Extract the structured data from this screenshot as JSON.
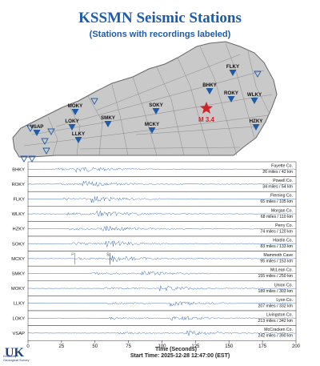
{
  "title": "KSSMN Seismic Stations",
  "subtitle": "(Stations with recordings labeled)",
  "event": {
    "label": "M 3.4"
  },
  "map_stations": [
    {
      "code": "FLKY"
    },
    {
      "code": "BHKY"
    },
    {
      "code": "ROKY"
    },
    {
      "code": "WLKY"
    },
    {
      "code": "MOKY"
    },
    {
      "code": "SOKY"
    },
    {
      "code": "SMKY"
    },
    {
      "code": "LOKY"
    },
    {
      "code": "MCKY"
    },
    {
      "code": "HZKY"
    },
    {
      "code": "VSAP"
    },
    {
      "code": "LLKY"
    }
  ],
  "rows": [
    {
      "code": "BHKY",
      "place": "Fayette Co.",
      "dist": "26 miles / 42 km",
      "p": 20
    },
    {
      "code": "ROKY",
      "place": "Powell Co.",
      "dist": "34 miles / 54 km",
      "p": 23
    },
    {
      "code": "FLKY",
      "place": "Fleming Co.",
      "dist": "65 miles / 105 km",
      "p": 27
    },
    {
      "code": "WLKY",
      "place": "Morgan Co.",
      "dist": "68 miles / 110 km",
      "p": 29
    },
    {
      "code": "HZKY",
      "place": "Perry Co.",
      "dist": "74 miles / 120 km",
      "p": 31
    },
    {
      "code": "SOKY",
      "place": "Hardin Co.",
      "dist": "83 miles / 133 km",
      "p": 33
    },
    {
      "code": "MCKY",
      "place": "Mammoth Cave",
      "dist": "95 miles / 153 km",
      "p": 35
    },
    {
      "code": "SMKY",
      "place": "McLean Co.",
      "dist": "155 miles / 250 km",
      "p": 48
    },
    {
      "code": "MOKY",
      "place": "Union Co.",
      "dist": "189 miles / 303 km",
      "p": 56
    },
    {
      "code": "LLKY",
      "place": "Lyon Co.",
      "dist": "207 miles / 332 km",
      "p": 60
    },
    {
      "code": "LOKY",
      "place": "Livingston Co.",
      "dist": "213 miles / 342 km",
      "p": 61
    },
    {
      "code": "VSAP",
      "place": "McCracken Co.",
      "dist": "242 miles / 390 km",
      "p": 67
    }
  ],
  "phase_labels": {
    "p": "P",
    "s": "S"
  },
  "axis": {
    "ticks": [
      "0",
      "25",
      "50",
      "75",
      "100",
      "125",
      "150",
      "175",
      "200"
    ],
    "xmin": 0,
    "xmax": 200,
    "xlabel": "Time (Seconds)",
    "start_time": "Start Time:  2025-12-28 12:47:00 (EST)"
  },
  "logo": {
    "line1": "Kentucky",
    "line2": "Geological Survey"
  },
  "colors": {
    "state_fill": "#c9c9c9",
    "county_line": "#7d7d7d",
    "station": "#1f5ba7",
    "event": "#d12229",
    "trace": "#1f5ba7",
    "title": "#1f5ba7"
  }
}
